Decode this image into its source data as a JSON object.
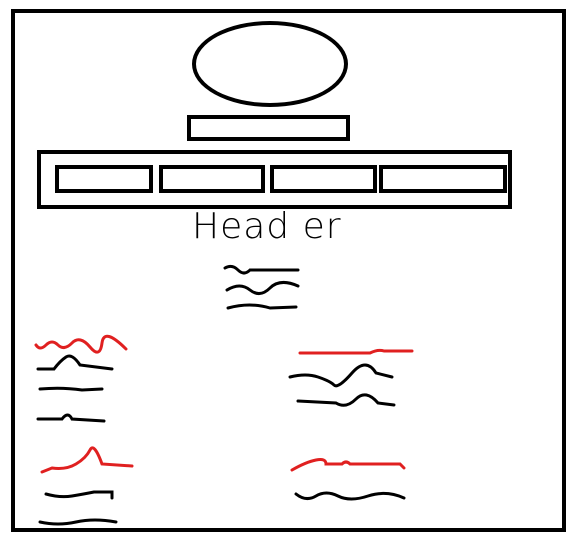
{
  "header": {
    "text": "Head er"
  },
  "nav": {
    "items": [
      "",
      "",
      "",
      ""
    ]
  },
  "colors": {
    "ink": "#000000",
    "accent": "#e02020"
  },
  "placeholder_blocks": [
    {
      "name": "intro-text"
    },
    {
      "name": "section-top-left"
    },
    {
      "name": "section-top-right"
    },
    {
      "name": "section-bottom-left"
    },
    {
      "name": "section-bottom-right"
    }
  ]
}
